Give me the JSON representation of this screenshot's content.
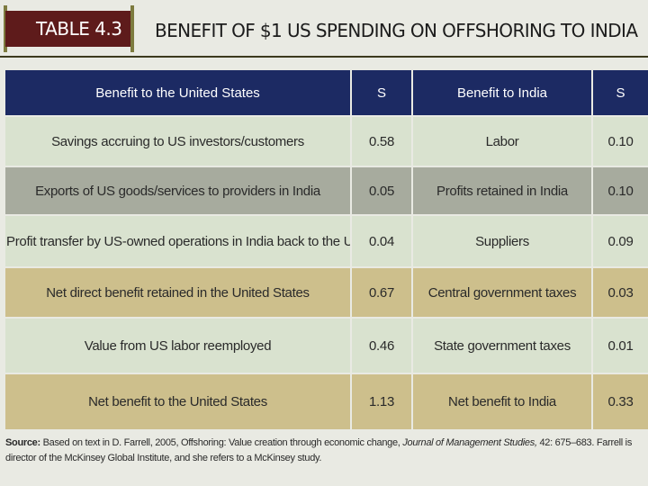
{
  "header": {
    "table_tag": "TABLE 4.3",
    "title": "BENEFIT OF $1 US SPENDING ON OFFSHORING TO INDIA"
  },
  "table": {
    "columns": [
      "Benefit to the United States",
      "S",
      "Benefit to India",
      "S"
    ],
    "rows": [
      {
        "us_benefit": "Savings accruing to US investors/customers",
        "us_value": "0.58",
        "india_benefit": "Labor",
        "india_value": "0.10"
      },
      {
        "us_benefit": "Exports of US goods/services to providers in India",
        "us_value": "0.05",
        "india_benefit": "Profits retained in India",
        "india_value": "0.10"
      },
      {
        "us_benefit": "Profit transfer by US-owned operations in India back to the US",
        "us_value": "0.04",
        "india_benefit": "Suppliers",
        "india_value": "0.09"
      },
      {
        "us_benefit": "Net direct benefit retained in the United States",
        "us_value": "0.67",
        "india_benefit": "Central government taxes",
        "india_value": "0.03"
      },
      {
        "us_benefit": "Value from US labor reemployed",
        "us_value": "0.46",
        "india_benefit": "State government taxes",
        "india_value": "0.01"
      },
      {
        "us_benefit": "Net benefit to the United States",
        "us_value": "1.13",
        "india_benefit": "Net benefit to India",
        "india_value": "0.33"
      }
    ]
  },
  "source": {
    "label": "Source:",
    "text_before": "Based on text in D. Farrell, 2005, Offshoring: Value creation through economic change,",
    "journal": "Journal of Management Studies,",
    "text_after": "42: 675–683. Farrell is director of the McKinsey Global Institute, and she refers to a McKinsey study."
  },
  "colors": {
    "header_bg": "#1c2a63",
    "tag_bg": "#5e1b1b",
    "row_light": "#d9e2cf",
    "row_gray": "#a7ab9e",
    "row_tan": "#cdbf8c"
  }
}
